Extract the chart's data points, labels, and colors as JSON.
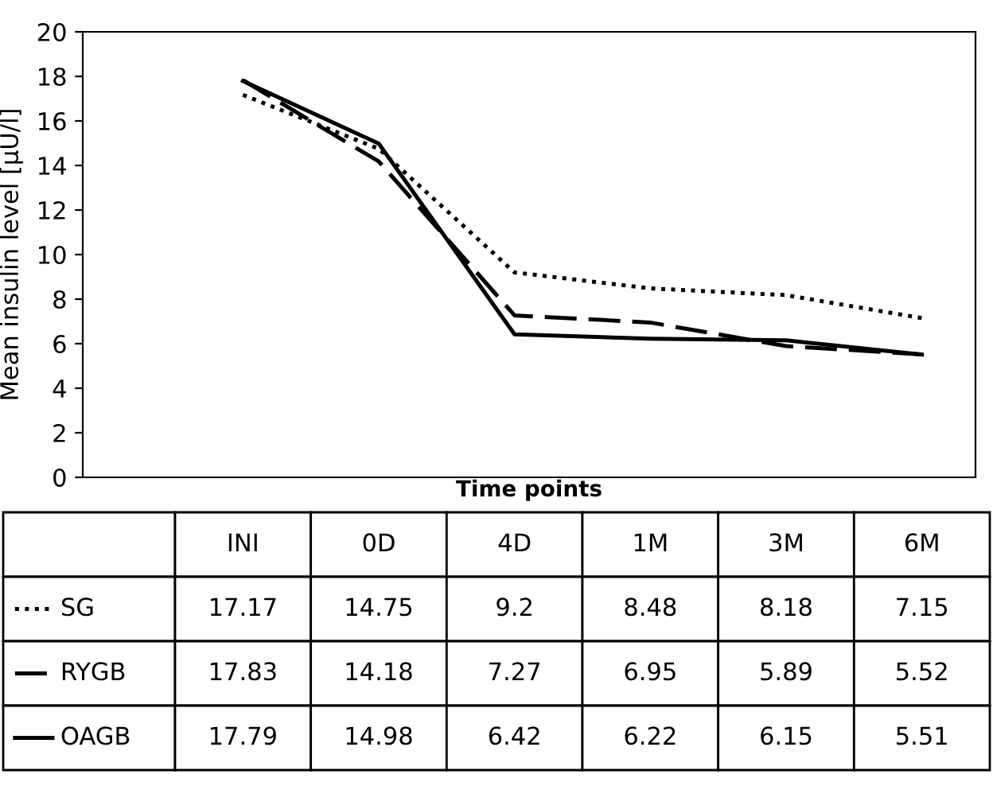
{
  "chart_data": {
    "type": "line",
    "xlabel": "Time points",
    "ylabel": "Mean insulin level [µU/l]",
    "categories": [
      "INI",
      "0D",
      "4D",
      "1M",
      "3M",
      "6M"
    ],
    "series": [
      {
        "name": "SG",
        "color": "#000000",
        "line_style": "dotted",
        "values": [
          17.17,
          14.75,
          9.2,
          8.48,
          8.18,
          7.15
        ]
      },
      {
        "name": "RYGB",
        "color": "#000000",
        "line_style": "dashed",
        "values": [
          17.83,
          14.18,
          7.27,
          6.95,
          5.89,
          5.52
        ]
      },
      {
        "name": "OAGB",
        "color": "#000000",
        "line_style": "solid",
        "values": [
          17.79,
          14.98,
          6.42,
          6.22,
          6.15,
          5.51
        ]
      }
    ],
    "ylim": [
      0,
      20
    ],
    "yticks": [
      0,
      2,
      4,
      6,
      8,
      10,
      12,
      14,
      16,
      18,
      20
    ],
    "grid": false,
    "legend": "bottom left",
    "tick_labels": "y",
    "data_labels": true
  }
}
